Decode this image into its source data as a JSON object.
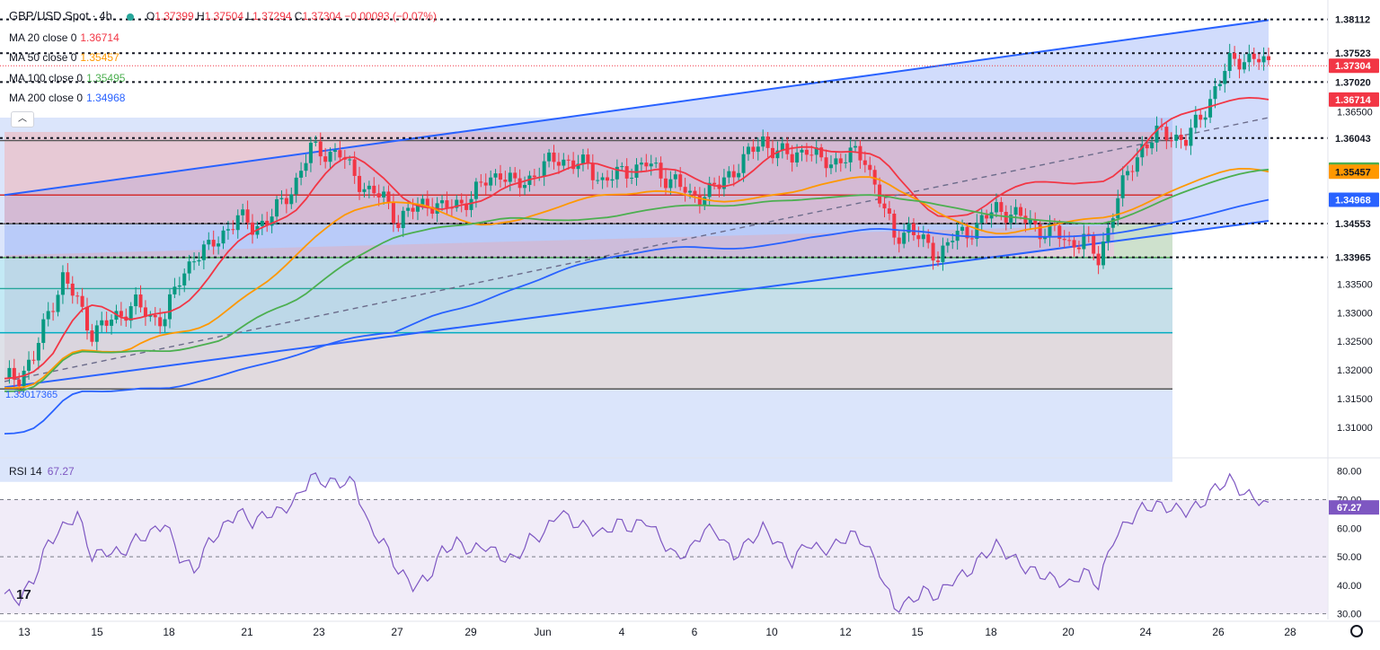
{
  "header": {
    "symbol": "GBP/USD Spot · 4h",
    "open_label": "O",
    "open": "1.37399",
    "high_label": "H",
    "high": "1.37504",
    "low_label": "L",
    "low": "1.37294",
    "close_label": "C",
    "close": "1.37304",
    "change": "−0.00093 (−0.07%)"
  },
  "legend": [
    {
      "label": "MA 20 close 0",
      "value": "1.36714",
      "color": "#f23645"
    },
    {
      "label": "MA 50 close 0",
      "value": "1.35457",
      "color": "#ff9800"
    },
    {
      "label": "MA 100 close 0",
      "value": "1.35495",
      "color": "#4caf50"
    },
    {
      "label": "MA 200 close 0",
      "value": "1.34968",
      "color": "#2962ff"
    }
  ],
  "rsi_legend": {
    "label": "RSI 14",
    "value": "67.27"
  },
  "low_marker": "1.33017365",
  "chart_data": {
    "type": "candlestick",
    "title": "GBP/USD Spot · 4h",
    "ylim": [
      1.305,
      1.3845
    ],
    "price_axis_ticks": [
      "1.31000",
      "1.31500",
      "1.32000",
      "1.32500",
      "1.33000",
      "1.33500",
      "1.36500"
    ],
    "x_tick_labels": [
      "13",
      "15",
      "18",
      "21",
      "23",
      "27",
      "29",
      "Jun",
      "4",
      "6",
      "10",
      "12",
      "15",
      "18",
      "20",
      "24",
      "26",
      "28"
    ],
    "close_path": [
      [
        0,
        1.3185
      ],
      [
        3,
        1.319
      ],
      [
        6,
        1.322
      ],
      [
        9,
        1.33
      ],
      [
        12,
        1.336
      ],
      [
        15,
        1.332
      ],
      [
        18,
        1.3265
      ],
      [
        21,
        1.328
      ],
      [
        24,
        1.33
      ],
      [
        27,
        1.3315
      ],
      [
        30,
        1.329
      ],
      [
        33,
        1.3295
      ],
      [
        36,
        1.3355
      ],
      [
        39,
        1.34
      ],
      [
        42,
        1.341
      ],
      [
        45,
        1.344
      ],
      [
        48,
        1.3465
      ],
      [
        51,
        1.345
      ],
      [
        54,
        1.346
      ],
      [
        57,
        1.349
      ],
      [
        60,
        1.353
      ],
      [
        63,
        1.3585
      ],
      [
        66,
        1.358
      ],
      [
        69,
        1.3575
      ],
      [
        72,
        1.354
      ],
      [
        75,
        1.351
      ],
      [
        78,
        1.35
      ],
      [
        81,
        1.346
      ],
      [
        84,
        1.348
      ],
      [
        87,
        1.3495
      ],
      [
        90,
        1.348
      ],
      [
        93,
        1.349
      ],
      [
        96,
        1.35
      ],
      [
        99,
        1.353
      ],
      [
        102,
        1.3545
      ],
      [
        105,
        1.352
      ],
      [
        108,
        1.3535
      ],
      [
        111,
        1.3555
      ],
      [
        114,
        1.357
      ],
      [
        117,
        1.356
      ],
      [
        120,
        1.3555
      ],
      [
        123,
        1.353
      ],
      [
        126,
        1.354
      ],
      [
        129,
        1.355
      ],
      [
        132,
        1.356
      ],
      [
        135,
        1.354
      ],
      [
        138,
        1.353
      ],
      [
        141,
        1.35
      ],
      [
        144,
        1.351
      ],
      [
        147,
        1.352
      ],
      [
        150,
        1.355
      ],
      [
        153,
        1.3575
      ],
      [
        156,
        1.36
      ],
      [
        159,
        1.358
      ],
      [
        162,
        1.357
      ],
      [
        165,
        1.359
      ],
      [
        168,
        1.356
      ],
      [
        171,
        1.3565
      ],
      [
        174,
        1.3575
      ],
      [
        177,
        1.357
      ],
      [
        180,
        1.35
      ],
      [
        183,
        1.343
      ],
      [
        186,
        1.345
      ],
      [
        189,
        1.342
      ],
      [
        192,
        1.34
      ],
      [
        195,
        1.343
      ],
      [
        198,
        1.344
      ],
      [
        201,
        1.346
      ],
      [
        204,
        1.348
      ],
      [
        207,
        1.3475
      ],
      [
        210,
        1.346
      ],
      [
        213,
        1.3445
      ],
      [
        216,
        1.344
      ],
      [
        219,
        1.342
      ],
      [
        222,
        1.343
      ],
      [
        225,
        1.339
      ],
      [
        228,
        1.348
      ],
      [
        231,
        1.354
      ],
      [
        234,
        1.359
      ],
      [
        237,
        1.361
      ],
      [
        240,
        1.361
      ],
      [
        243,
        1.36
      ],
      [
        246,
        1.364
      ],
      [
        249,
        1.369
      ],
      [
        252,
        1.3735
      ],
      [
        255,
        1.3745
      ],
      [
        258,
        1.374
      ],
      [
        260,
        1.373
      ]
    ],
    "series": [
      {
        "name": "MA 20",
        "color": "#f23645",
        "last": 1.36714
      },
      {
        "name": "MA 50",
        "color": "#ff9800",
        "last": 1.35457
      },
      {
        "name": "MA 100",
        "color": "#4caf50",
        "last": 1.35495
      },
      {
        "name": "MA 200",
        "color": "#2962ff",
        "last": 1.34968
      }
    ],
    "price_levels": [
      {
        "value": 1.38112,
        "label": "1.38112",
        "style": "dotted"
      },
      {
        "value": 1.37523,
        "label": "1.37523",
        "style": "dotted"
      },
      {
        "value": 1.37304,
        "label": "1.37304",
        "style": "current"
      },
      {
        "value": 1.3702,
        "label": "1.37020",
        "style": "dotted"
      },
      {
        "value": 1.36043,
        "label": "1.36043",
        "style": "dotted"
      },
      {
        "value": 1.34553,
        "label": "1.34553",
        "style": "dotted"
      },
      {
        "value": 1.33965,
        "label": "1.33965",
        "style": "dotted"
      }
    ],
    "price_badges": [
      {
        "value": 1.38112,
        "label": "1.38112",
        "bg": "#ffffff",
        "fg": "#131722"
      },
      {
        "value": 1.37523,
        "label": "1.37523",
        "bg": "#ffffff",
        "fg": "#131722"
      },
      {
        "value": 1.37304,
        "label": "1.37304",
        "bg": "#f23645",
        "fg": "#ffffff"
      },
      {
        "value": 1.3702,
        "label": "1.37020",
        "bg": "#ffffff",
        "fg": "#131722"
      },
      {
        "value": 1.36714,
        "label": "1.36714",
        "bg": "#f23645",
        "fg": "#ffffff"
      },
      {
        "value": 1.36043,
        "label": "1.36043",
        "bg": "#ffffff",
        "fg": "#131722"
      },
      {
        "value": 1.35495,
        "label": "1.35495",
        "bg": "#4caf50",
        "fg": "#ffffff"
      },
      {
        "value": 1.35457,
        "label": "1.35457",
        "bg": "#ff9800",
        "fg": "#131722"
      },
      {
        "value": 1.34968,
        "label": "1.34968",
        "bg": "#2962ff",
        "fg": "#ffffff"
      },
      {
        "value": 1.34553,
        "label": "1.34553",
        "bg": "#ffffff",
        "fg": "#131722"
      },
      {
        "value": 1.33965,
        "label": "1.33965",
        "bg": "#ffffff",
        "fg": "#131722"
      }
    ],
    "fib_levels": [
      1.36,
      1.3505,
      1.3455,
      1.3396,
      1.3342,
      1.3265,
      1.3167
    ],
    "channel": {
      "upper_start": 1.3505,
      "upper_end": 1.381,
      "lower_start": 1.317,
      "lower_end": 1.346
    },
    "rsi": {
      "label": "RSI 14",
      "last": 67.27,
      "ylim": [
        28,
        84
      ],
      "ticks": [
        "80.00",
        "70.00",
        "60.00",
        "50.00",
        "40.00",
        "30.00"
      ],
      "band": [
        30,
        70
      ],
      "values": [
        [
          0,
          37
        ],
        [
          3,
          35
        ],
        [
          6,
          42
        ],
        [
          9,
          55
        ],
        [
          12,
          60
        ],
        [
          15,
          65
        ],
        [
          18,
          50
        ],
        [
          21,
          52
        ],
        [
          24,
          51
        ],
        [
          27,
          56
        ],
        [
          30,
          58
        ],
        [
          33,
          62
        ],
        [
          36,
          50
        ],
        [
          39,
          45
        ],
        [
          42,
          55
        ],
        [
          45,
          60
        ],
        [
          48,
          66
        ],
        [
          51,
          62
        ],
        [
          54,
          65
        ],
        [
          57,
          66
        ],
        [
          60,
          70
        ],
        [
          63,
          78
        ],
        [
          66,
          76
        ],
        [
          69,
          76
        ],
        [
          72,
          76
        ],
        [
          75,
          60
        ],
        [
          78,
          55
        ],
        [
          81,
          45
        ],
        [
          84,
          40
        ],
        [
          87,
          42
        ],
        [
          90,
          52
        ],
        [
          93,
          55
        ],
        [
          96,
          52
        ],
        [
          99,
          54
        ],
        [
          102,
          50
        ],
        [
          105,
          49
        ],
        [
          108,
          56
        ],
        [
          111,
          58
        ],
        [
          114,
          66
        ],
        [
          117,
          62
        ],
        [
          120,
          60
        ],
        [
          123,
          58
        ],
        [
          126,
          62
        ],
        [
          129,
          60
        ],
        [
          132,
          63
        ],
        [
          135,
          56
        ],
        [
          138,
          50
        ],
        [
          141,
          52
        ],
        [
          144,
          60
        ],
        [
          147,
          58
        ],
        [
          150,
          50
        ],
        [
          153,
          55
        ],
        [
          156,
          60
        ],
        [
          159,
          55
        ],
        [
          162,
          48
        ],
        [
          165,
          55
        ],
        [
          168,
          52
        ],
        [
          171,
          54
        ],
        [
          174,
          58
        ],
        [
          177,
          55
        ],
        [
          180,
          45
        ],
        [
          183,
          32
        ],
        [
          186,
          34
        ],
        [
          189,
          38
        ],
        [
          192,
          36
        ],
        [
          195,
          42
        ],
        [
          198,
          44
        ],
        [
          201,
          50
        ],
        [
          204,
          54
        ],
        [
          207,
          50
        ],
        [
          210,
          46
        ],
        [
          213,
          44
        ],
        [
          216,
          42
        ],
        [
          219,
          40
        ],
        [
          222,
          45
        ],
        [
          225,
          40
        ],
        [
          228,
          56
        ],
        [
          231,
          62
        ],
        [
          234,
          67
        ],
        [
          237,
          68
        ],
        [
          240,
          67
        ],
        [
          243,
          66
        ],
        [
          246,
          68
        ],
        [
          249,
          74
        ],
        [
          252,
          77
        ],
        [
          255,
          72
        ],
        [
          258,
          70
        ],
        [
          260,
          67.27
        ]
      ]
    }
  }
}
